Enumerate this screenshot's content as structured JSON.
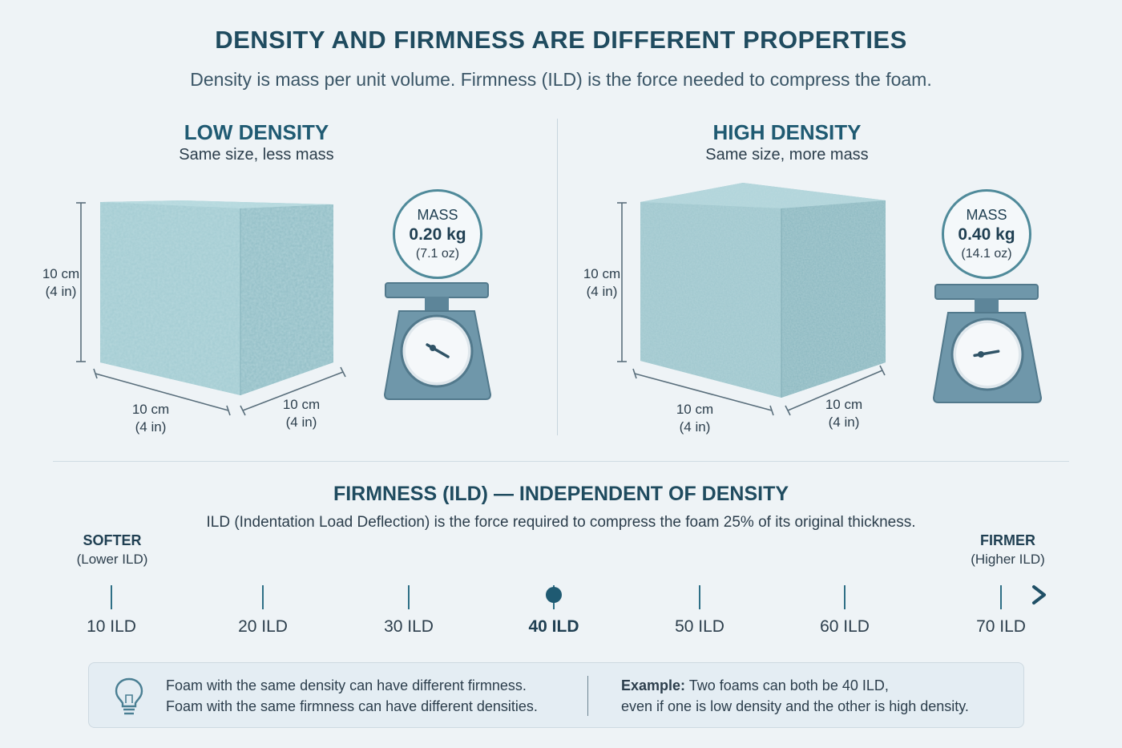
{
  "header": {
    "title": "DENSITY AND FIRMNESS ARE DIFFERENT PROPERTIES",
    "subtitle": "Density is mass per unit volume. Firmness (ILD) is the force needed to compress the foam."
  },
  "panels": [
    {
      "title": "LOW DENSITY",
      "subtitle": "Same size, less mass",
      "height_label_1": "10 cm",
      "height_label_2": "(4 in)",
      "width_label_1": "10 cm",
      "width_label_2": "(4 in)",
      "depth_label_1": "10 cm",
      "depth_label_2": "(4 in)",
      "mass_label": "MASS",
      "mass_value": "0.20 kg",
      "mass_oz": "(7.1 oz)",
      "scale_reading": 0.2
    },
    {
      "title": "HIGH DENSITY",
      "subtitle": "Same size, more mass",
      "height_label_1": "10 cm",
      "height_label_2": "(4 in)",
      "width_label_1": "10 cm",
      "width_label_2": "(4 in)",
      "depth_label_1": "10 cm",
      "depth_label_2": "(4 in)",
      "mass_label": "MASS",
      "mass_value": "0.40 kg",
      "mass_oz": "(14.1 oz)",
      "scale_reading": 0.4
    }
  ],
  "firmness": {
    "title": "FIRMNESS (ILD) — INDEPENDENT OF DENSITY",
    "subtitle": "ILD (Indentation Load Deflection) is the force required to compress the foam 25% of its original thickness.",
    "softer_label": "SOFTER",
    "softer_sub": "(Lower ILD)",
    "firmer_label": "FIRMER",
    "firmer_sub": "(Higher ILD)",
    "ticks": [
      "10 ILD",
      "20 ILD",
      "30 ILD",
      "40 ILD",
      "50 ILD",
      "60 ILD",
      "70 ILD"
    ],
    "highlight": "40 ILD"
  },
  "note": {
    "left_line1": "Foam with the same density can have different firmness.",
    "left_line2": "Foam with the same firmness can have different densities.",
    "right_bold": "Example:",
    "right_line1": " Two foams can both be 40 ILD,",
    "right_line2": "even if one is low density and the other is high density."
  },
  "colors": {
    "accent": "#1f5a72",
    "foam": "#9fc7cf",
    "scale": "#6f97aa",
    "line": "#2e6f86"
  }
}
